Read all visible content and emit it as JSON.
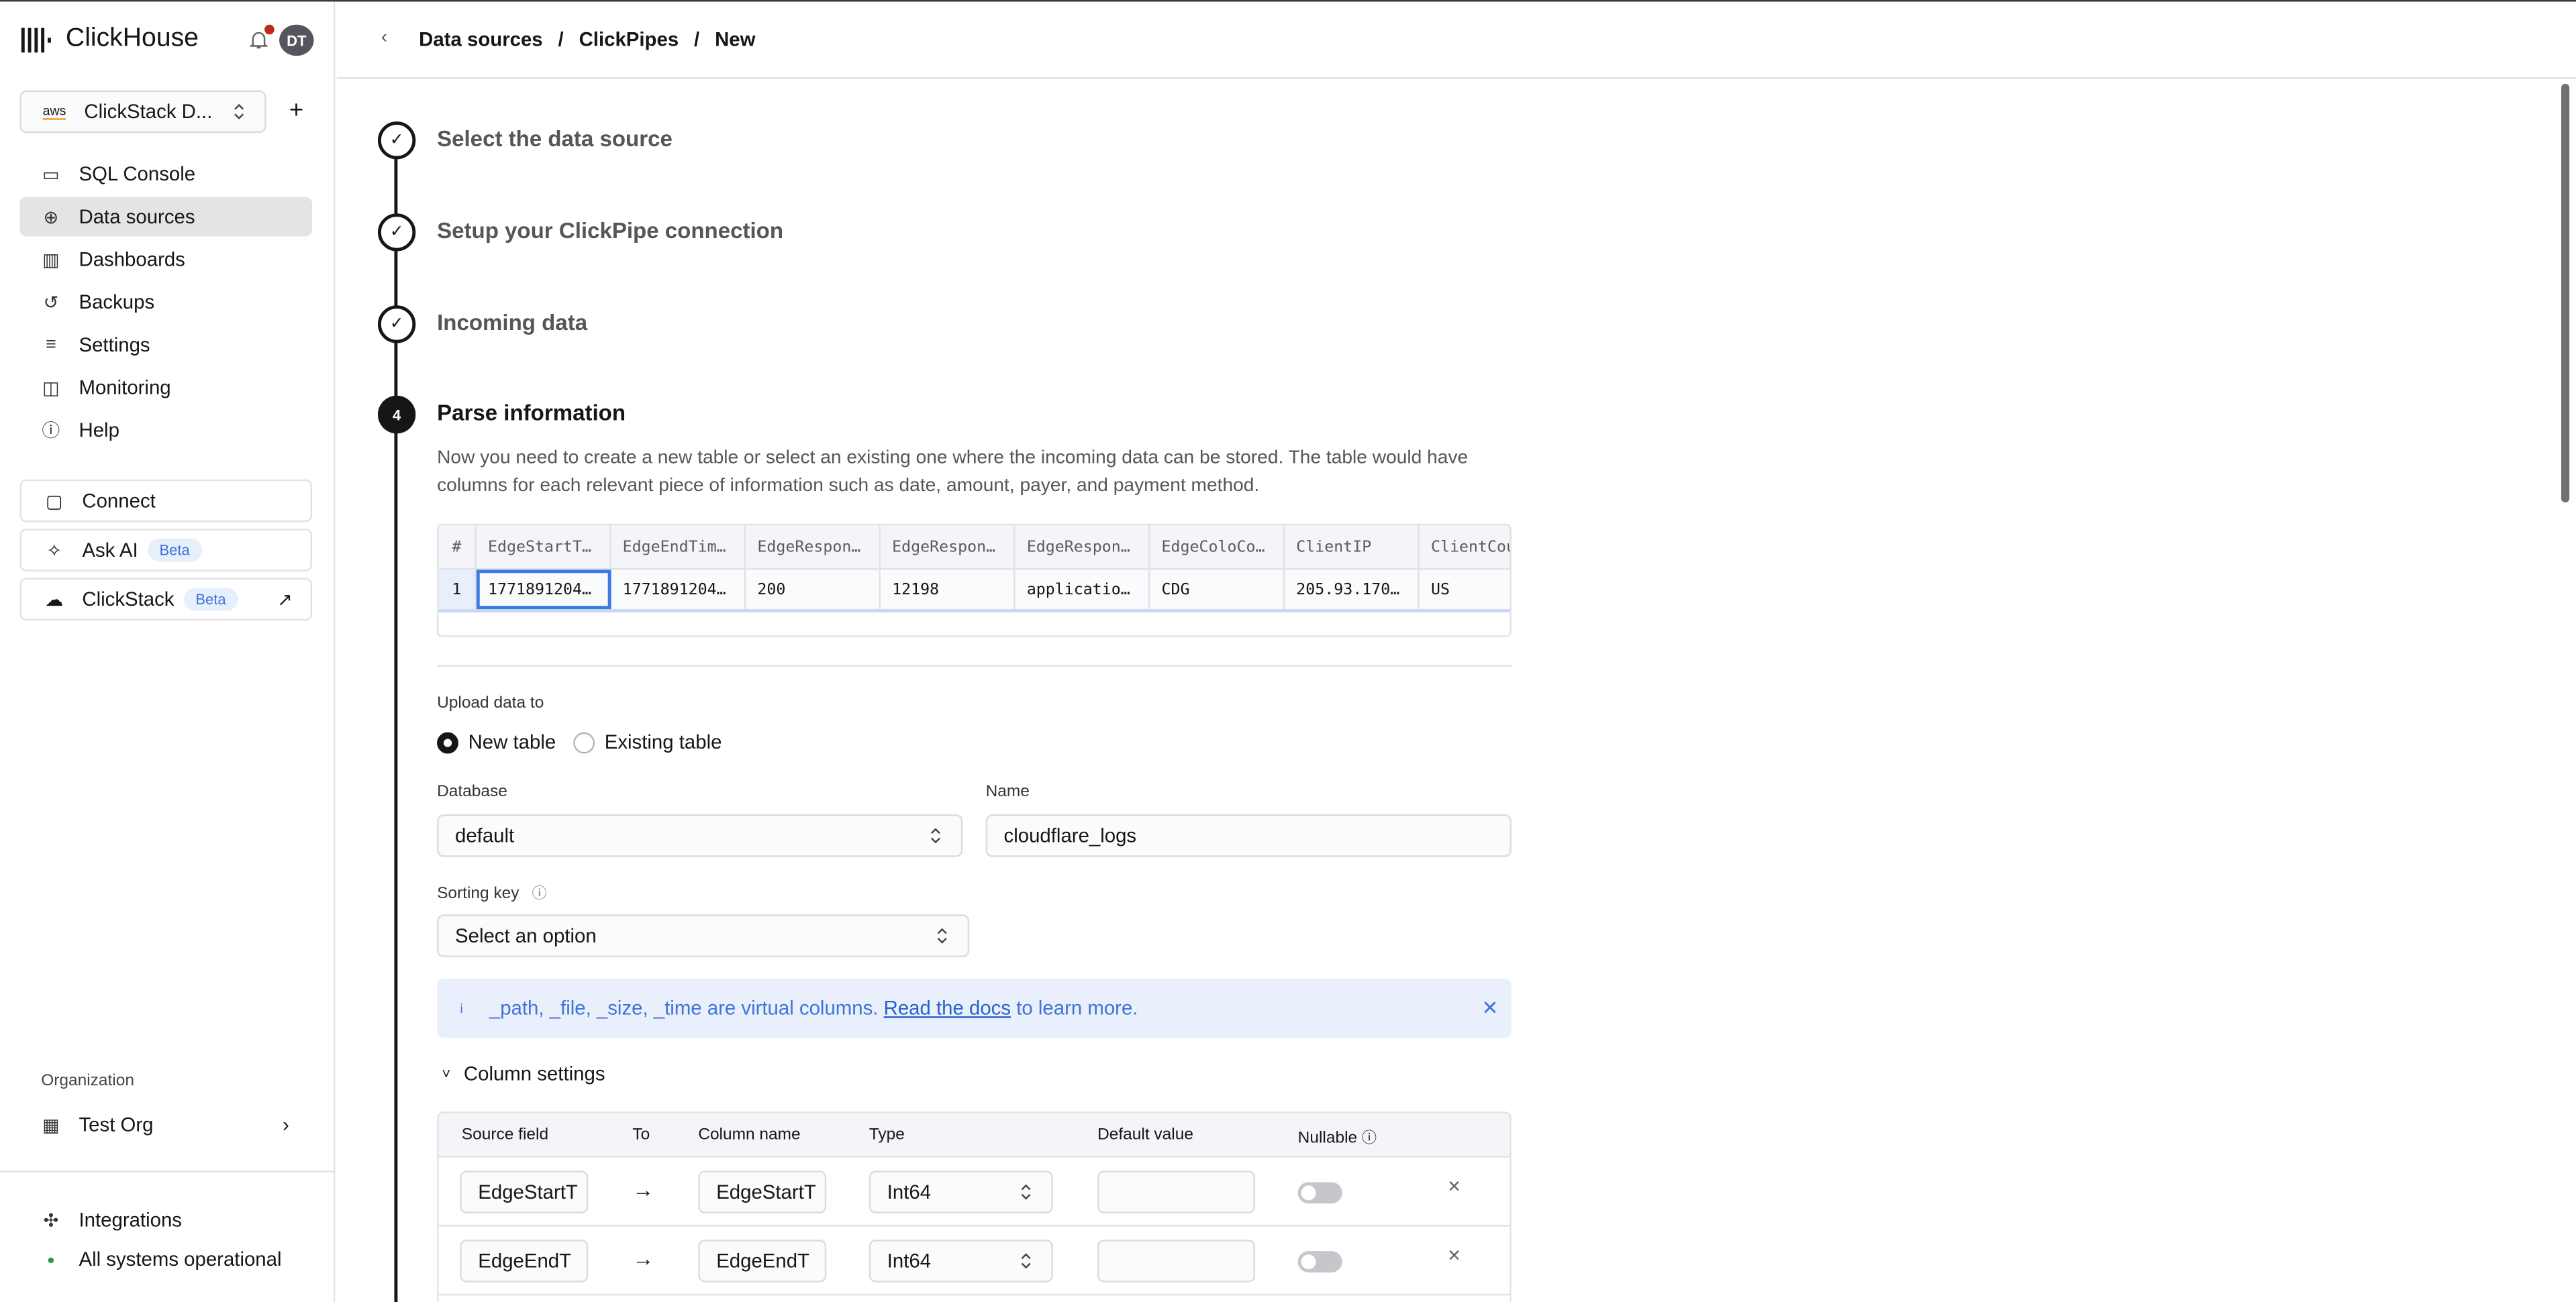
{
  "app": {
    "name": "ClickHouse",
    "avatar_initials": "DT",
    "accent": "#3f73d9",
    "notification_dot": "#c0281e"
  },
  "service_selector": {
    "provider": "aws",
    "label": "ClickStack D..."
  },
  "sidebar": {
    "items": [
      {
        "label": "SQL Console",
        "icon": "monitor-icon"
      },
      {
        "label": "Data sources",
        "icon": "data-sources-icon",
        "active": true
      },
      {
        "label": "Dashboards",
        "icon": "bar-chart-icon"
      },
      {
        "label": "Backups",
        "icon": "backup-icon"
      },
      {
        "label": "Settings",
        "icon": "sliders-icon"
      },
      {
        "label": "Monitoring",
        "icon": "monitoring-icon"
      },
      {
        "label": "Help",
        "icon": "help-icon"
      }
    ],
    "connect": "Connect",
    "ask_ai": "Ask AI",
    "clickstack": "ClickStack",
    "beta": "Beta",
    "org_label": "Organization",
    "org_name": "Test Org",
    "integrations": "Integrations",
    "status": "All systems operational",
    "status_color": "#2d9a3e"
  },
  "breadcrumb": [
    "Data sources",
    "ClickPipes",
    "New"
  ],
  "steps": [
    {
      "title": "Select the data source",
      "done": true
    },
    {
      "title": "Setup your ClickPipe connection",
      "done": true
    },
    {
      "title": "Incoming data",
      "done": true
    },
    {
      "number": "4",
      "title": "Parse information"
    }
  ],
  "description": "Now you need to create a new table or select an existing one where the incoming data can be stored. The table would have columns for each relevant piece of information such as date, amount, payer, and payment method.",
  "preview": {
    "headers": [
      "#",
      "EdgeStartT…",
      "EdgeEndTim…",
      "EdgeRespon…",
      "EdgeRespon…",
      "EdgeRespon…",
      "EdgeColoCo…",
      "ClientIP",
      "ClientCou"
    ],
    "rows": [
      [
        "1",
        "1771891204…",
        "1771891204…",
        "200",
        "12198",
        "applicatio…",
        "CDG",
        "205.93.170…",
        "US"
      ]
    ]
  },
  "upload": {
    "label": "Upload data to",
    "options": [
      "New table",
      "Existing table"
    ],
    "selected": "New table"
  },
  "database": {
    "label": "Database",
    "value": "default"
  },
  "name": {
    "label": "Name",
    "value": "cloudflare_logs"
  },
  "sorting_key": {
    "label": "Sorting key",
    "placeholder": "Select an option"
  },
  "banner": {
    "text": "_path, _file, _size, _time are virtual columns.",
    "link": "Read the docs",
    "suffix": " to learn more."
  },
  "column_settings": {
    "title": "Column settings",
    "headers": [
      "Source field",
      "To",
      "Column name",
      "Type",
      "Default value",
      "Nullable"
    ],
    "rows": [
      {
        "source": "EdgeStartT",
        "column": "EdgeStartT",
        "type": "Int64",
        "default": "",
        "nullable": false
      },
      {
        "source": "EdgeEndT",
        "column": "EdgeEndT",
        "type": "Int64",
        "default": "",
        "nullable": false
      }
    ]
  }
}
